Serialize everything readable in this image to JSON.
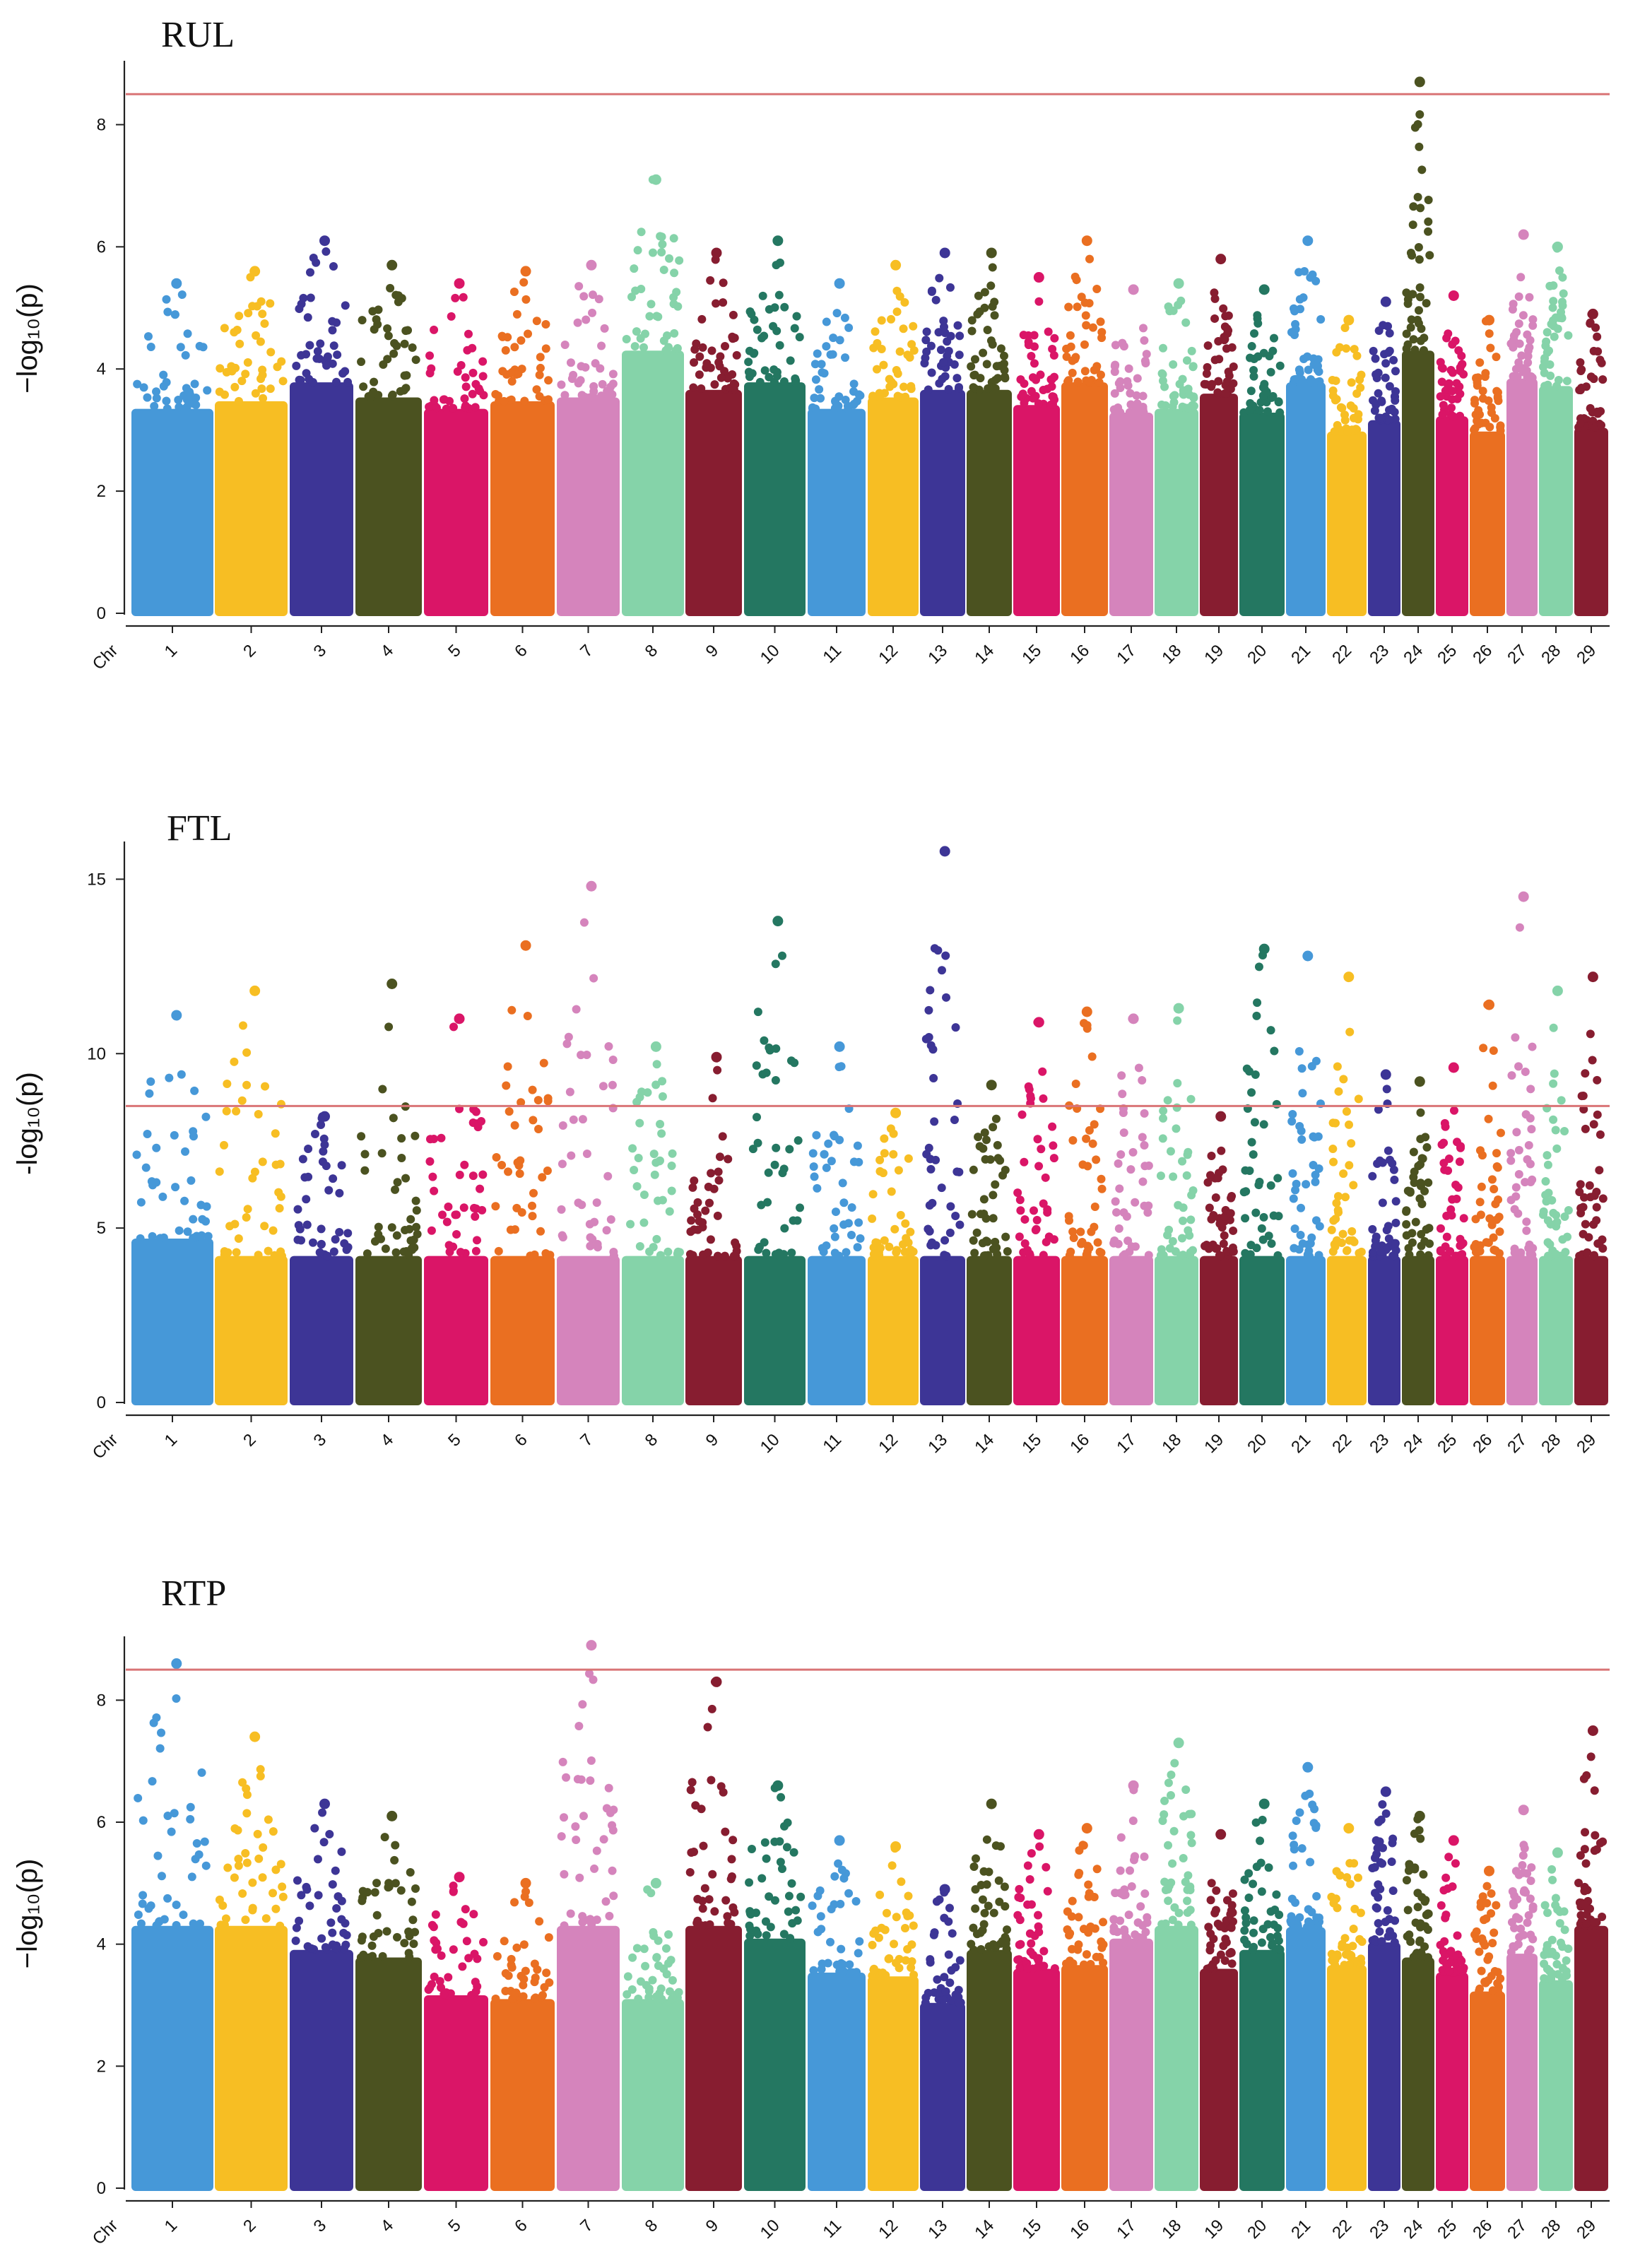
{
  "figure": {
    "panel_count": 3
  },
  "chart_data": [
    {
      "type": "scatter",
      "title": "RUL",
      "xlabel": "Chr",
      "ylabel": "−log₁₀(p)",
      "ylim": [
        0,
        9
      ],
      "yticks": [
        0,
        2,
        4,
        6,
        8
      ],
      "threshold": 8.5,
      "categories": [
        "1",
        "2",
        "3",
        "4",
        "5",
        "6",
        "7",
        "8",
        "9",
        "10",
        "11",
        "12",
        "13",
        "14",
        "15",
        "16",
        "17",
        "18",
        "19",
        "20",
        "21",
        "22",
        "23",
        "24",
        "25",
        "26",
        "27",
        "28",
        "29"
      ],
      "series": [
        {
          "values": [
            5.4,
            5.6,
            6.1,
            5.7,
            5.4,
            5.6,
            5.7,
            7.1,
            5.9,
            6.1,
            5.4,
            5.7,
            5.9,
            5.9,
            5.5,
            6.1,
            5.3,
            5.4,
            5.8,
            5.3,
            6.1,
            4.8,
            5.1,
            8.7,
            5.2,
            4.8,
            6.2,
            6.0,
            4.9
          ]
        }
      ]
    },
    {
      "type": "scatter",
      "title": "FTL",
      "xlabel": "Chr",
      "ylabel": "-log₁₀(p)",
      "ylim": [
        0,
        16
      ],
      "yticks": [
        0,
        5,
        10,
        15
      ],
      "threshold": 8.5,
      "categories": [
        "1",
        "2",
        "3",
        "4",
        "5",
        "6",
        "7",
        "8",
        "9",
        "10",
        "11",
        "12",
        "13",
        "14",
        "15",
        "16",
        "17",
        "18",
        "19",
        "20",
        "21",
        "22",
        "23",
        "24",
        "25",
        "26",
        "27",
        "28",
        "29"
      ],
      "series": [
        {
          "values": [
            11.1,
            11.8,
            8.2,
            12.0,
            11.0,
            13.1,
            14.8,
            10.2,
            9.9,
            13.8,
            10.2,
            8.3,
            15.8,
            9.1,
            10.9,
            11.2,
            11.0,
            11.3,
            8.2,
            13.0,
            12.8,
            12.2,
            9.4,
            9.2,
            9.6,
            11.4,
            14.5,
            11.8,
            12.2
          ]
        }
      ]
    },
    {
      "type": "scatter",
      "title": "RTP",
      "xlabel": "Chr",
      "ylabel": "−log₁₀(p)",
      "ylim": [
        0,
        9
      ],
      "yticks": [
        0,
        2,
        4,
        6,
        8
      ],
      "threshold": 8.5,
      "categories": [
        "1",
        "2",
        "3",
        "4",
        "5",
        "6",
        "7",
        "8",
        "9",
        "10",
        "11",
        "12",
        "13",
        "14",
        "15",
        "16",
        "17",
        "18",
        "19",
        "20",
        "21",
        "22",
        "23",
        "24",
        "25",
        "26",
        "27",
        "28",
        "29"
      ],
      "series": [
        {
          "values": [
            8.6,
            7.4,
            6.3,
            6.1,
            5.1,
            5.0,
            8.9,
            5.0,
            8.3,
            6.6,
            5.7,
            5.6,
            4.9,
            6.3,
            5.8,
            5.9,
            6.6,
            7.3,
            5.8,
            6.3,
            6.9,
            5.9,
            6.5,
            6.1,
            5.7,
            5.2,
            6.2,
            5.5,
            7.5
          ]
        }
      ]
    }
  ],
  "colors": {
    "palette": [
      "#4698d8",
      "#f7be23",
      "#3d3596",
      "#4b5220",
      "#da1567",
      "#ea6f21",
      "#d584bc",
      "#85d3a9",
      "#871d30",
      "#247761"
    ],
    "threshold": "#d97476",
    "axis": "#222222"
  }
}
